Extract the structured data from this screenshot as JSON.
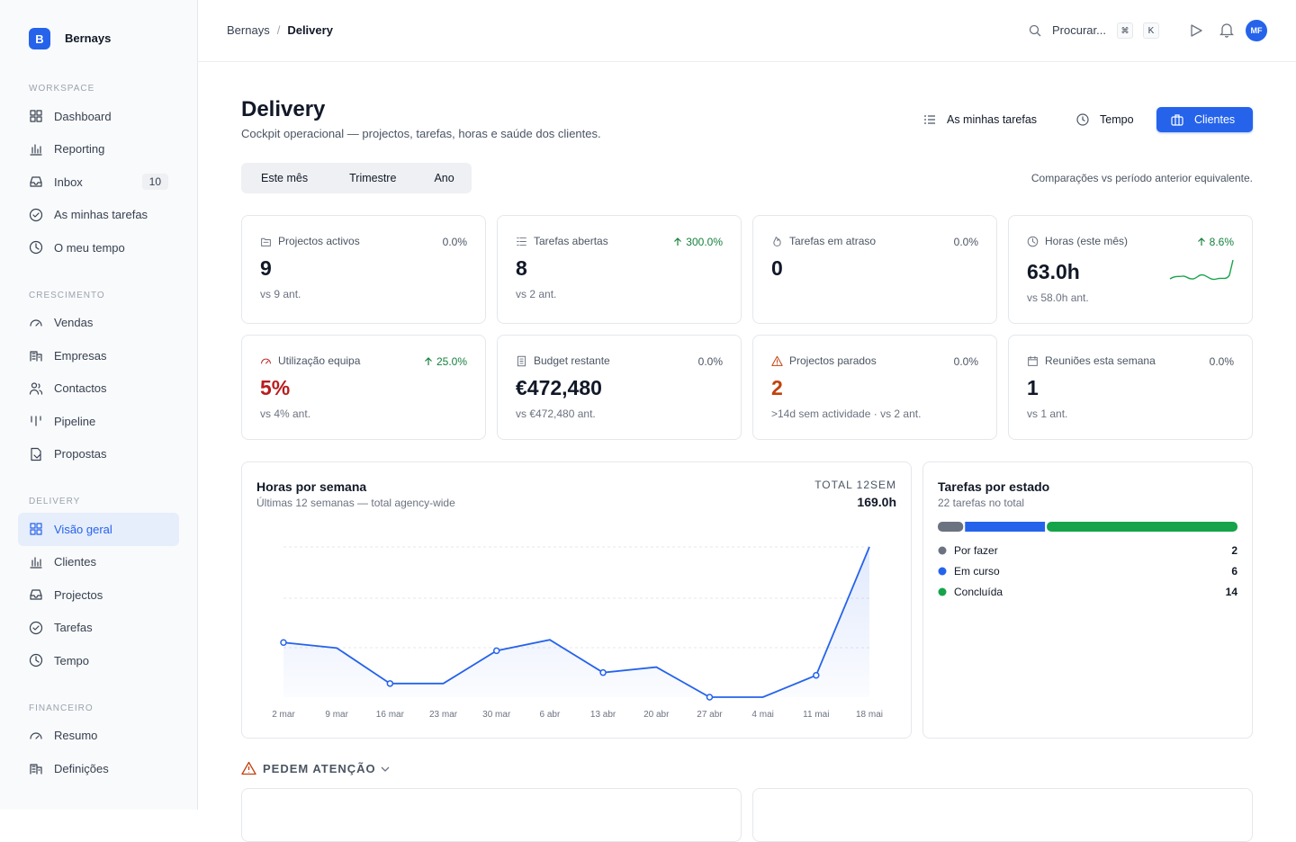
{
  "sidebar": {
    "logo": "B",
    "brand": "Bernays",
    "sections": [
      {
        "title": "WORKSPACE",
        "items": [
          {
            "label": "Dashboard"
          },
          {
            "label": "Reporting"
          },
          {
            "label": "Inbox",
            "badge": 10
          },
          {
            "label": "As minhas tarefas"
          },
          {
            "label": "O meu tempo"
          }
        ]
      },
      {
        "title": "CRESCIMENTO",
        "items": [
          {
            "label": "Vendas"
          },
          {
            "label": "Empresas"
          },
          {
            "label": "Contactos"
          },
          {
            "label": "Pipeline"
          },
          {
            "label": "Propostas"
          }
        ]
      },
      {
        "title": "DELIVERY",
        "items": [
          {
            "label": "Visão geral",
            "active": true
          },
          {
            "label": "Clientes"
          },
          {
            "label": "Projectos"
          },
          {
            "label": "Tarefas"
          },
          {
            "label": "Tempo"
          }
        ]
      },
      {
        "title": "FINANCEIRO",
        "items": [
          {
            "label": "Resumo"
          },
          {
            "label": "Definições"
          }
        ]
      }
    ]
  },
  "topbar": {
    "breadcrumb": [
      "Bernays",
      "Delivery"
    ],
    "search": "Procurar...",
    "shortcut": [
      "⌘",
      "K"
    ],
    "avatar": "MF"
  },
  "header": {
    "title": "Delivery",
    "subtitle": "Cockpit operacional — projectos, tarefas, horas e saúde dos clientes.",
    "actions": [
      "As minhas tarefas",
      "Tempo",
      "Clientes"
    ]
  },
  "periods": [
    "Este mês",
    "Trimestre",
    "Ano"
  ],
  "comparison_note": "Comparações vs período anterior equivalente.",
  "kpis": [
    {
      "label": "Projectos activos",
      "change": "0.0%",
      "trend": "flat",
      "value": "9",
      "sub": "vs 9 ant."
    },
    {
      "label": "Tarefas abertas",
      "change": "300.0%",
      "trend": "up",
      "value": "8",
      "sub": "vs 2 ant."
    },
    {
      "label": "Tarefas em atraso",
      "change": "0.0%",
      "trend": "flat",
      "value": "0"
    },
    {
      "label": "Horas (este mês)",
      "change": "8.6%",
      "trend": "up",
      "value": "63.0h",
      "sub": "vs 58.0h ant."
    },
    {
      "label": "Utilização equipa",
      "change": "25.0%",
      "trend": "up",
      "value": "5%",
      "value_color": "#b91c1c",
      "sub": "vs 4% ant."
    },
    {
      "label": "Budget restante",
      "change": "0.0%",
      "trend": "flat",
      "value": "€472,480",
      "sub": "vs €472,480 ant."
    },
    {
      "label": "Projectos parados",
      "change": "0.0%",
      "trend": "flat",
      "value": "2",
      "value_color": "#c2410c",
      "sub": ">14d sem actividade · vs 2 ant."
    },
    {
      "label": "Reuniões esta semana",
      "change": "0.0%",
      "trend": "flat",
      "value": "1",
      "sub": "vs 1 ant."
    }
  ],
  "chart_data": [
    {
      "type": "line",
      "title": "Horas por semana",
      "subtitle": "Últimas 12 semanas — total agency-wide",
      "total_label": "TOTAL 12SEM",
      "total": "169.0h",
      "categories": [
        "2 mar",
        "9 mar",
        "16 mar",
        "23 mar",
        "30 mar",
        "6 abr",
        "13 abr",
        "20 abr",
        "27 abr",
        "4 mai",
        "11 mai",
        "18 mai"
      ],
      "values": [
        20,
        18,
        5,
        5,
        17,
        21,
        9,
        11,
        0,
        0,
        8,
        55
      ],
      "color": "#2563eb"
    },
    {
      "type": "stacked-bar",
      "title": "Tarefas por estado",
      "subtitle": "22 tarefas no total",
      "categories": [
        "Por fazer",
        "Em curso",
        "Concluída"
      ],
      "values": [
        2,
        6,
        14
      ],
      "colors": [
        "#6b7280",
        "#2563eb",
        "#16a34a"
      ]
    }
  ],
  "attention": {
    "title": "PEDEM ATENÇÃO"
  }
}
